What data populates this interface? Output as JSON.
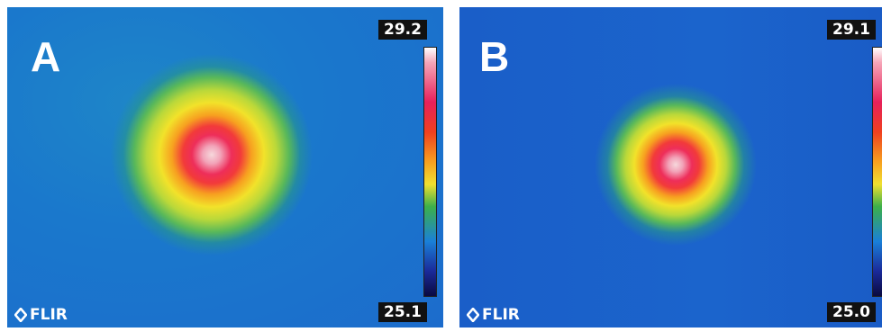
{
  "panels": [
    {
      "label": "A",
      "max": "29.2",
      "min": "25.1",
      "brand": "FLIR"
    },
    {
      "label": "B",
      "max": "29.1",
      "min": "25.0",
      "brand": "FLIR"
    }
  ]
}
